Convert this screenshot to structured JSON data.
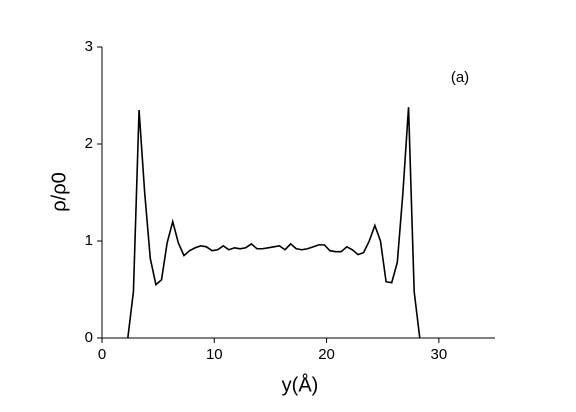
{
  "chart_data": {
    "type": "line",
    "x_label": "y(Å)",
    "y_label": "ρ/ρ0",
    "annotation": "(a)",
    "x": [
      2.3,
      2.8,
      3.3,
      3.8,
      4.3,
      4.8,
      5.3,
      5.8,
      6.3,
      6.8,
      7.3,
      7.8,
      8.3,
      8.8,
      9.3,
      9.8,
      10.3,
      10.8,
      11.3,
      11.8,
      12.3,
      12.8,
      13.3,
      13.8,
      14.3,
      14.8,
      15.3,
      15.8,
      16.3,
      16.8,
      17.3,
      17.8,
      18.3,
      18.8,
      19.3,
      19.8,
      20.3,
      20.8,
      21.3,
      21.8,
      22.3,
      22.8,
      23.3,
      23.8,
      24.3,
      24.8,
      25.3,
      25.8,
      26.3,
      26.8,
      27.3,
      27.8,
      28.3
    ],
    "series": [
      {
        "color": "#000000",
        "values": [
          0,
          0.48,
          2.35,
          1.5,
          0.82,
          0.55,
          0.6,
          0.98,
          1.2,
          0.98,
          0.85,
          0.9,
          0.93,
          0.95,
          0.94,
          0.9,
          0.91,
          0.95,
          0.91,
          0.93,
          0.92,
          0.93,
          0.97,
          0.92,
          0.92,
          0.93,
          0.94,
          0.95,
          0.91,
          0.97,
          0.92,
          0.91,
          0.92,
          0.94,
          0.96,
          0.96,
          0.9,
          0.89,
          0.89,
          0.94,
          0.91,
          0.86,
          0.88,
          1.0,
          1.16,
          1.0,
          0.58,
          0.57,
          0.78,
          1.5,
          2.38,
          0.48,
          0
        ]
      }
    ],
    "xlim": [
      0,
      35
    ],
    "ylim": [
      0,
      3
    ],
    "xticks": [
      0,
      10,
      20,
      30
    ],
    "yticks": [
      0,
      1,
      2,
      3
    ]
  }
}
